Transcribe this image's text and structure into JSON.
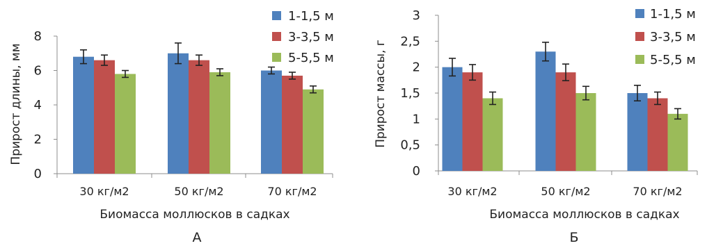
{
  "colors": {
    "s1": "#4F81BD",
    "s2": "#C0504D",
    "s3": "#9BBB59"
  },
  "legend": [
    "1-1,5 м",
    "3-3,5 м",
    "5-5,5 м"
  ],
  "chart_data": [
    {
      "type": "bar",
      "panel_label": "А",
      "categories": [
        "30 кг/м2",
        "50 кг/м2",
        "70 кг/м2"
      ],
      "xlabel": "Биомасса моллюсков в садках",
      "ylabel": "Прирост длины, мм",
      "ylim": [
        0,
        8
      ],
      "yticks": [
        "0",
        "2",
        "4",
        "6",
        "8"
      ],
      "legend_position": "top-right",
      "series": [
        {
          "name": "1-1,5 м",
          "values": [
            6.8,
            7.0,
            6.0
          ],
          "errors": [
            0.4,
            0.6,
            0.2
          ]
        },
        {
          "name": "3-3,5 м",
          "values": [
            6.6,
            6.6,
            5.7
          ],
          "errors": [
            0.3,
            0.3,
            0.2
          ]
        },
        {
          "name": "5-5,5 м",
          "values": [
            5.8,
            5.9,
            4.9
          ],
          "errors": [
            0.2,
            0.2,
            0.2
          ]
        }
      ]
    },
    {
      "type": "bar",
      "panel_label": "Б",
      "categories": [
        "30 кг/м2",
        "50 кг/м2",
        "70 кг/м2"
      ],
      "xlabel": "Биомасса моллюсков в садках",
      "ylabel": "Прирост массы, г",
      "ylim": [
        0,
        3
      ],
      "yticks": [
        "0",
        "0,5",
        "1",
        "1,5",
        "2",
        "2,5",
        "3"
      ],
      "legend_position": "top-right",
      "series": [
        {
          "name": "1-1,5 м",
          "values": [
            2.0,
            2.3,
            1.5
          ],
          "errors": [
            0.17,
            0.18,
            0.15
          ]
        },
        {
          "name": "3-3,5 м",
          "values": [
            1.9,
            1.9,
            1.4
          ],
          "errors": [
            0.15,
            0.16,
            0.12
          ]
        },
        {
          "name": "5-5,5 м",
          "values": [
            1.4,
            1.5,
            1.1
          ],
          "errors": [
            0.12,
            0.13,
            0.1
          ]
        }
      ]
    }
  ]
}
